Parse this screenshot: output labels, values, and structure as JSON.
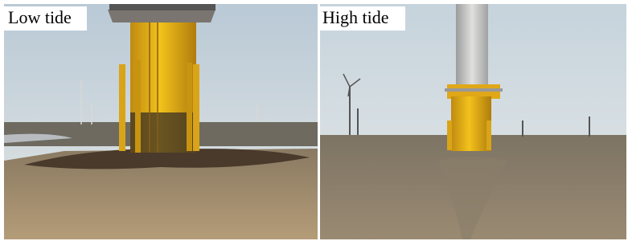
{
  "panels": [
    {
      "label": "Low tide"
    },
    {
      "label": "High tide"
    }
  ]
}
